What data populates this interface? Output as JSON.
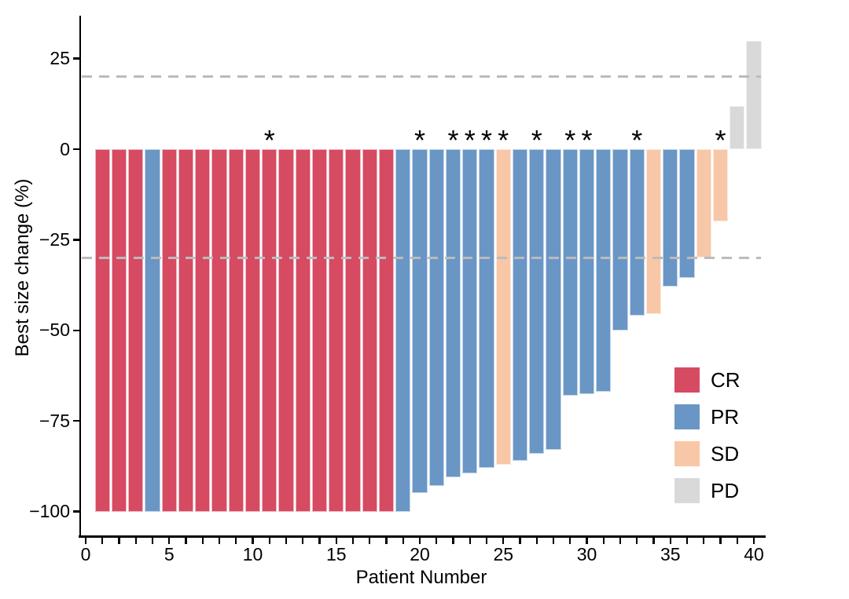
{
  "chart_data": {
    "type": "bar",
    "subtype": "waterfall",
    "title": "",
    "xlabel": "Patient Number",
    "ylabel": "Best size change (%)",
    "x_ticks": [
      0,
      5,
      10,
      15,
      20,
      25,
      30,
      35,
      40
    ],
    "x_minor_tick_step": 1,
    "x_range": [
      0,
      41
    ],
    "y_ticks": [
      {
        "value": 25,
        "label": "25"
      },
      {
        "value": 0,
        "label": "0"
      },
      {
        "value": -25,
        "label": "−25"
      },
      {
        "value": -50,
        "label": "−50"
      },
      {
        "value": -75,
        "label": "−75"
      },
      {
        "value": -100,
        "label": "−100"
      }
    ],
    "y_range": [
      -107,
      38
    ],
    "grid": false,
    "reference_lines": [
      {
        "value": 20,
        "style": "dashed",
        "color": "#BBBBBB"
      },
      {
        "value": -30,
        "style": "dashed",
        "color": "#BBBBBB"
      }
    ],
    "annotation_symbol": "*",
    "annotated_patients": [
      11,
      20,
      22,
      23,
      24,
      25,
      27,
      29,
      30,
      33,
      38
    ],
    "legend_position": "right-middle",
    "legend": [
      {
        "code": "CR",
        "label": "CR",
        "color": "#D64A62"
      },
      {
        "code": "PR",
        "label": "PR",
        "color": "#6A96C5"
      },
      {
        "code": "SD",
        "label": "SD",
        "color": "#F8C7A8"
      },
      {
        "code": "PD",
        "label": "PD",
        "color": "#D9D9D9"
      }
    ],
    "patients": [
      {
        "n": 1,
        "value": -100,
        "response": "CR",
        "star": false
      },
      {
        "n": 2,
        "value": -100,
        "response": "CR",
        "star": false
      },
      {
        "n": 3,
        "value": -100,
        "response": "CR",
        "star": false
      },
      {
        "n": 4,
        "value": -100,
        "response": "PR",
        "star": false
      },
      {
        "n": 5,
        "value": -100,
        "response": "CR",
        "star": false
      },
      {
        "n": 6,
        "value": -100,
        "response": "CR",
        "star": false
      },
      {
        "n": 7,
        "value": -100,
        "response": "CR",
        "star": false
      },
      {
        "n": 8,
        "value": -100,
        "response": "CR",
        "star": false
      },
      {
        "n": 9,
        "value": -100,
        "response": "CR",
        "star": false
      },
      {
        "n": 10,
        "value": -100,
        "response": "CR",
        "star": false
      },
      {
        "n": 11,
        "value": -100,
        "response": "CR",
        "star": true
      },
      {
        "n": 12,
        "value": -100,
        "response": "CR",
        "star": false
      },
      {
        "n": 13,
        "value": -100,
        "response": "CR",
        "star": false
      },
      {
        "n": 14,
        "value": -100,
        "response": "CR",
        "star": false
      },
      {
        "n": 15,
        "value": -100,
        "response": "CR",
        "star": false
      },
      {
        "n": 16,
        "value": -100,
        "response": "CR",
        "star": false
      },
      {
        "n": 17,
        "value": -100,
        "response": "CR",
        "star": false
      },
      {
        "n": 18,
        "value": -100,
        "response": "CR",
        "star": false
      },
      {
        "n": 19,
        "value": -100,
        "response": "PR",
        "star": false
      },
      {
        "n": 20,
        "value": -95,
        "response": "PR",
        "star": true
      },
      {
        "n": 21,
        "value": -93,
        "response": "PR",
        "star": false
      },
      {
        "n": 22,
        "value": -90.5,
        "response": "PR",
        "star": true
      },
      {
        "n": 23,
        "value": -89.5,
        "response": "PR",
        "star": true
      },
      {
        "n": 24,
        "value": -88,
        "response": "PR",
        "star": true
      },
      {
        "n": 25,
        "value": -87,
        "response": "SD",
        "star": true
      },
      {
        "n": 26,
        "value": -86,
        "response": "PR",
        "star": false
      },
      {
        "n": 27,
        "value": -84,
        "response": "PR",
        "star": true
      },
      {
        "n": 28,
        "value": -83,
        "response": "PR",
        "star": false
      },
      {
        "n": 29,
        "value": -68,
        "response": "PR",
        "star": true
      },
      {
        "n": 30,
        "value": -67.5,
        "response": "PR",
        "star": true
      },
      {
        "n": 31,
        "value": -67,
        "response": "PR",
        "star": false
      },
      {
        "n": 32,
        "value": -50,
        "response": "PR",
        "star": false
      },
      {
        "n": 33,
        "value": -46,
        "response": "PR",
        "star": true
      },
      {
        "n": 34,
        "value": -45.5,
        "response": "SD",
        "star": false
      },
      {
        "n": 35,
        "value": -38,
        "response": "PR",
        "star": false
      },
      {
        "n": 36,
        "value": -35.5,
        "response": "PR",
        "star": false
      },
      {
        "n": 37,
        "value": -30,
        "response": "SD",
        "star": false
      },
      {
        "n": 38,
        "value": -20,
        "response": "SD",
        "star": true
      },
      {
        "n": 39,
        "value": 12,
        "response": "PD",
        "star": false
      },
      {
        "n": 40,
        "value": 30,
        "response": "PD",
        "star": false
      }
    ]
  }
}
